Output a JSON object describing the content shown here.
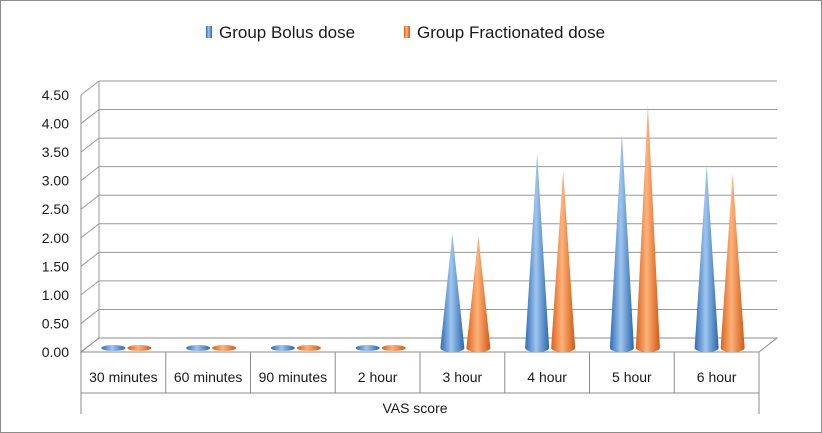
{
  "chart_data": {
    "type": "bar",
    "bar_shape": "cone",
    "three_d": true,
    "categories": [
      "30 minutes",
      "60 minutes",
      "90 minutes",
      "2 hour",
      "3 hour",
      "4 hour",
      "5 hour",
      "6 hour"
    ],
    "series": [
      {
        "name": "Group Bolus dose",
        "color": "#4f8fd6",
        "values": [
          0,
          0,
          0,
          0,
          1.95,
          3.35,
          3.7,
          3.15
        ]
      },
      {
        "name": "Group Fractionated dose",
        "color": "#f0812c",
        "values": [
          0,
          0,
          0,
          0,
          1.9,
          3.05,
          4.2,
          3.0
        ]
      }
    ],
    "title": "",
    "xlabel": "VAS score",
    "ylabel": "",
    "ylim": [
      0,
      4.5
    ],
    "yticks": [
      "0.00",
      "0.50",
      "1.00",
      "1.50",
      "2.00",
      "2.50",
      "3.00",
      "3.50",
      "4.00",
      "4.50"
    ],
    "grid": true,
    "legend": "top"
  }
}
